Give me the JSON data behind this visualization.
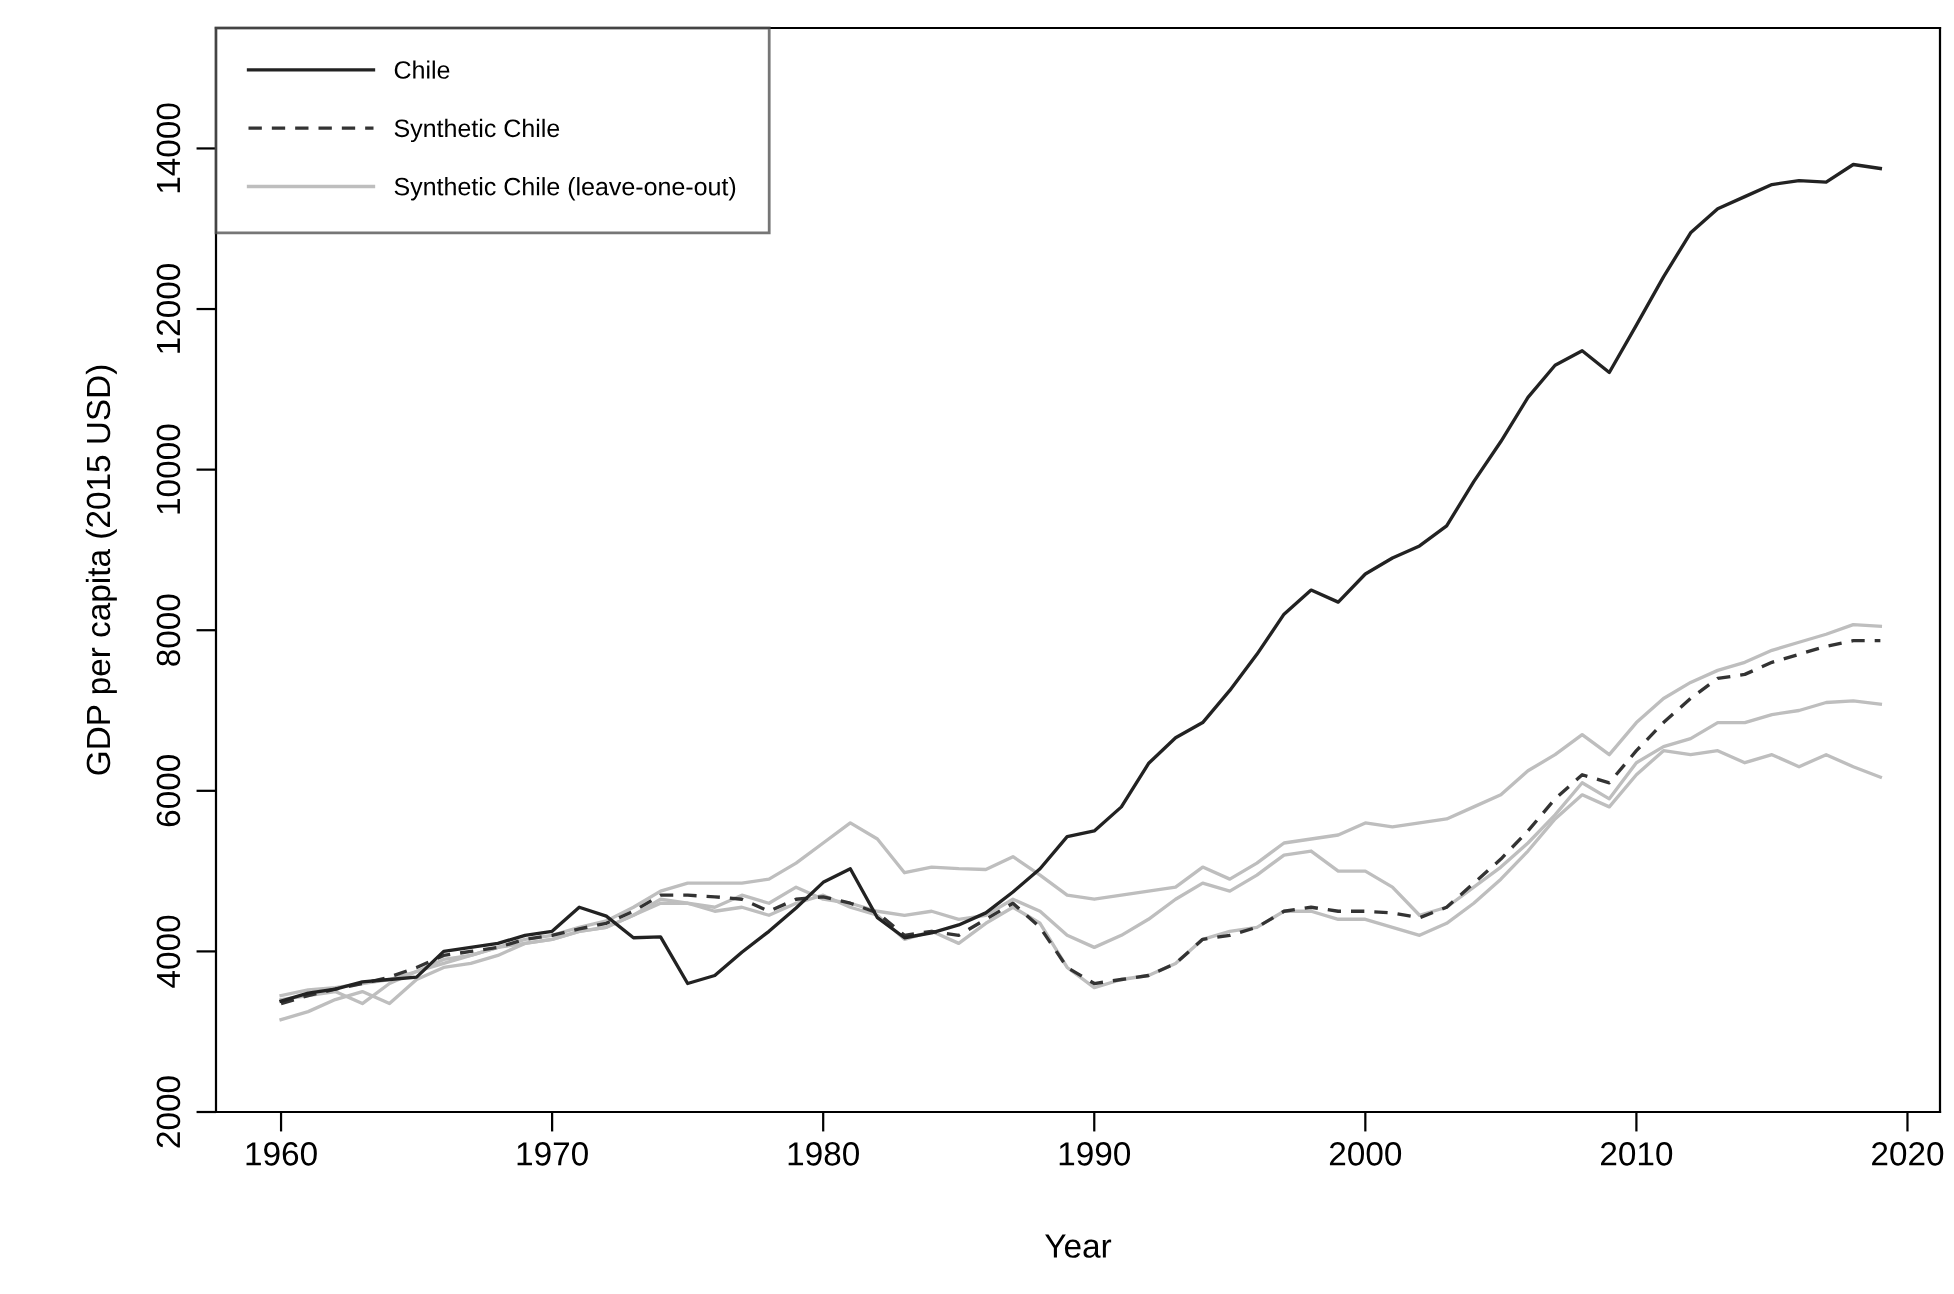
{
  "chart_data": {
    "type": "line",
    "xlabel": "Year",
    "ylabel": "GDP per capita (2015 USD)",
    "x": [
      1960,
      1961,
      1962,
      1963,
      1964,
      1965,
      1966,
      1967,
      1968,
      1969,
      1970,
      1971,
      1972,
      1973,
      1974,
      1975,
      1976,
      1977,
      1978,
      1979,
      1980,
      1981,
      1982,
      1983,
      1984,
      1985,
      1986,
      1987,
      1988,
      1989,
      1990,
      1991,
      1992,
      1993,
      1994,
      1995,
      1996,
      1997,
      1998,
      1999,
      2000,
      2001,
      2002,
      2003,
      2004,
      2005,
      2006,
      2007,
      2008,
      2009,
      2010,
      2011,
      2012,
      2013,
      2014,
      2015,
      2016,
      2017,
      2018,
      2019
    ],
    "series": [
      {
        "name": "Synthetic Chile (leave-one-out)",
        "color": "#bebebe",
        "line_style": "solid",
        "values": [
          3450,
          3520,
          3550,
          3600,
          3650,
          3750,
          3850,
          3950,
          4050,
          4150,
          4200,
          4300,
          4380,
          4550,
          4750,
          4850,
          4850,
          4850,
          4900,
          5100,
          5350,
          5600,
          5400,
          4980,
          5050,
          5030,
          5020,
          5180,
          4950,
          4700,
          4650,
          4700,
          4750,
          4800,
          5050,
          4900,
          5100,
          5350,
          5400,
          5450,
          5600,
          5550,
          5600,
          5650,
          5800,
          5950,
          6250,
          6450,
          6700,
          6450,
          6850,
          7150,
          7350,
          7500,
          7600,
          7750,
          7850,
          7950,
          8070,
          8050
        ]
      },
      {
        "color": "#bebebe",
        "line_style": "solid",
        "values": [
          3150,
          3250,
          3400,
          3500,
          3350,
          3650,
          3800,
          3850,
          3950,
          4100,
          4150,
          4250,
          4300,
          4450,
          4600,
          4600,
          4550,
          4700,
          4600,
          4800,
          4650,
          4600,
          4500,
          4450,
          4500,
          4400,
          4450,
          4650,
          4500,
          4200,
          4050,
          4200,
          4400,
          4650,
          4850,
          4750,
          4950,
          5200,
          5250,
          5000,
          5000,
          4800,
          4450,
          4550,
          4800,
          5050,
          5350,
          5700,
          6100,
          5900,
          6350,
          6550,
          6650,
          6850,
          6850,
          6950,
          7000,
          7100,
          7120,
          7080
        ]
      },
      {
        "color": "#bebebe",
        "line_style": "solid",
        "values": [
          3400,
          3450,
          3500,
          3350,
          3600,
          3750,
          3900,
          3950,
          4050,
          4100,
          4150,
          4250,
          4300,
          4450,
          4650,
          4600,
          4500,
          4550,
          4450,
          4600,
          4700,
          4550,
          4450,
          4150,
          4250,
          4100,
          4350,
          4550,
          4350,
          3800,
          3550,
          3650,
          3700,
          3850,
          4150,
          4250,
          4300,
          4500,
          4500,
          4400,
          4400,
          4300,
          4200,
          4350,
          4600,
          4900,
          5250,
          5650,
          5950,
          5800,
          6200,
          6500,
          6450,
          6500,
          6350,
          6450,
          6300,
          6450,
          6300,
          6170
        ]
      },
      {
        "name": "Synthetic Chile",
        "color": "#333333",
        "line_style": "dashed",
        "values": [
          3350,
          3450,
          3530,
          3600,
          3680,
          3800,
          3950,
          4000,
          4050,
          4150,
          4200,
          4280,
          4350,
          4500,
          4700,
          4700,
          4680,
          4650,
          4500,
          4650,
          4680,
          4600,
          4480,
          4200,
          4250,
          4200,
          4400,
          4600,
          4300,
          3800,
          3600,
          3650,
          3700,
          3850,
          4150,
          4200,
          4300,
          4500,
          4550,
          4500,
          4500,
          4480,
          4420,
          4550,
          4850,
          5150,
          5500,
          5900,
          6200,
          6100,
          6500,
          6850,
          7150,
          7400,
          7450,
          7600,
          7700,
          7800,
          7870,
          7870
        ]
      },
      {
        "name": "Chile",
        "color": "#222222",
        "line_style": "solid",
        "values": [
          3380,
          3480,
          3530,
          3620,
          3650,
          3680,
          4000,
          4050,
          4100,
          4200,
          4250,
          4550,
          4440,
          4170,
          4180,
          3600,
          3700,
          3990,
          4250,
          4540,
          4860,
          5030,
          4420,
          4170,
          4230,
          4330,
          4480,
          4740,
          5030,
          5430,
          5500,
          5800,
          6340,
          6660,
          6850,
          7250,
          7700,
          8200,
          8500,
          8350,
          8700,
          8900,
          9050,
          9300,
          9850,
          10350,
          10900,
          11300,
          11480,
          11210,
          11800,
          12400,
          12950,
          13250,
          13400,
          13550,
          13600,
          13580,
          13800,
          13750
        ]
      }
    ],
    "xlim": [
      1957.6,
      2021.2
    ],
    "ylim": [
      2000,
      15500
    ],
    "xticks": [
      1960,
      1970,
      1980,
      1990,
      2000,
      2010,
      2020
    ],
    "yticks": [
      2000,
      4000,
      6000,
      8000,
      10000,
      12000,
      14000
    ],
    "grid": false,
    "legend": "top left"
  }
}
